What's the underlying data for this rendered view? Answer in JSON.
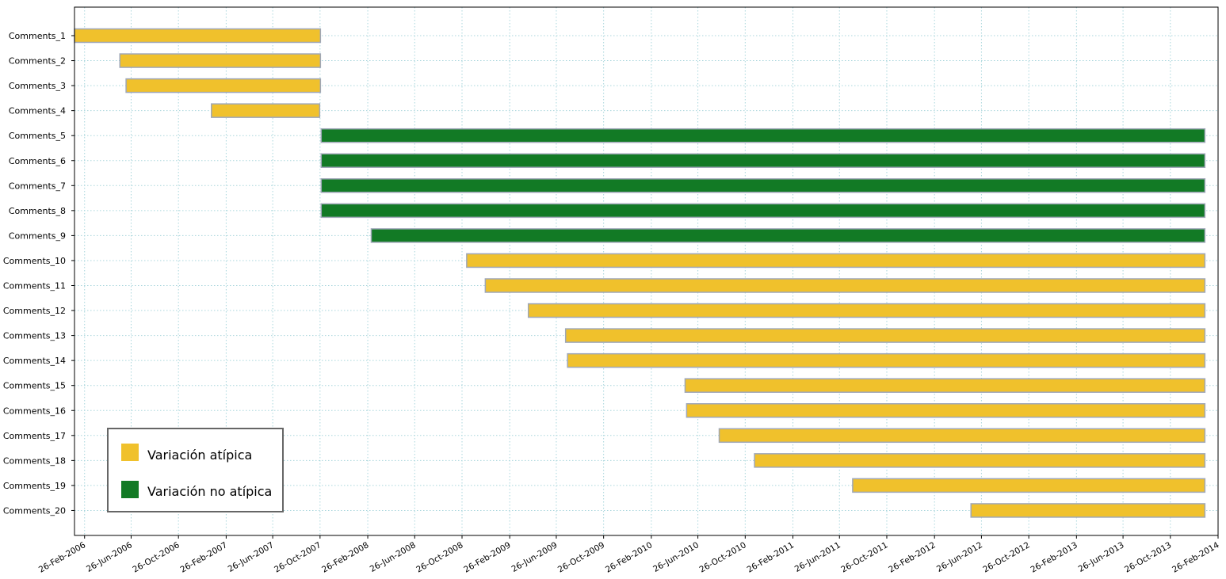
{
  "chart_data": {
    "type": "gantt",
    "title": "",
    "xlabel": "",
    "ylabel": "",
    "grid": true,
    "legend_position": "bottom-left",
    "xlim": [
      "2006-01-31",
      "2014-02-26"
    ],
    "x_ticks": [
      "26-Feb-2006",
      "26-Jun-2006",
      "26-Oct-2006",
      "26-Feb-2007",
      "26-Jun-2007",
      "26-Oct-2007",
      "26-Feb-2008",
      "26-Jun-2008",
      "26-Oct-2008",
      "26-Feb-2009",
      "26-Jun-2009",
      "26-Oct-2009",
      "26-Feb-2010",
      "26-Jun-2010",
      "26-Oct-2010",
      "26-Feb-2011",
      "26-Jun-2011",
      "26-Oct-2011",
      "26-Feb-2012",
      "26-Jun-2012",
      "26-Oct-2012",
      "26-Feb-2013",
      "26-Jun-2013",
      "26-Oct-2013",
      "26-Feb-2014"
    ],
    "series": [
      {
        "name": "Variación atípica",
        "color": "#f0c12c"
      },
      {
        "name": "Variación no atípica",
        "color": "#127a25"
      }
    ],
    "tasks": [
      {
        "label": "Comments_1",
        "start": "2006-01-31",
        "end": "2007-10-27",
        "series": 0
      },
      {
        "label": "Comments_2",
        "start": "2006-05-28",
        "end": "2007-10-27",
        "series": 0
      },
      {
        "label": "Comments_3",
        "start": "2006-06-13",
        "end": "2007-10-27",
        "series": 0
      },
      {
        "label": "Comments_4",
        "start": "2007-01-19",
        "end": "2007-10-25",
        "series": 0
      },
      {
        "label": "Comments_5",
        "start": "2007-10-29",
        "end": "2014-01-23",
        "series": 1
      },
      {
        "label": "Comments_6",
        "start": "2007-10-29",
        "end": "2014-01-23",
        "series": 1
      },
      {
        "label": "Comments_7",
        "start": "2007-10-29",
        "end": "2014-01-23",
        "series": 1
      },
      {
        "label": "Comments_8",
        "start": "2007-10-29",
        "end": "2014-01-23",
        "series": 1
      },
      {
        "label": "Comments_9",
        "start": "2008-03-06",
        "end": "2014-01-23",
        "series": 1
      },
      {
        "label": "Comments_10",
        "start": "2008-11-07",
        "end": "2014-01-23",
        "series": 0
      },
      {
        "label": "Comments_11",
        "start": "2008-12-25",
        "end": "2014-01-23",
        "series": 0
      },
      {
        "label": "Comments_12",
        "start": "2009-04-15",
        "end": "2014-01-23",
        "series": 0
      },
      {
        "label": "Comments_13",
        "start": "2009-07-20",
        "end": "2014-01-23",
        "series": 0
      },
      {
        "label": "Comments_14",
        "start": "2009-07-25",
        "end": "2014-01-23",
        "series": 0
      },
      {
        "label": "Comments_15",
        "start": "2010-05-24",
        "end": "2014-01-23",
        "series": 0
      },
      {
        "label": "Comments_16",
        "start": "2010-05-28",
        "end": "2014-01-23",
        "series": 0
      },
      {
        "label": "Comments_17",
        "start": "2010-08-20",
        "end": "2014-01-23",
        "series": 0
      },
      {
        "label": "Comments_18",
        "start": "2010-11-19",
        "end": "2014-01-23",
        "series": 0
      },
      {
        "label": "Comments_19",
        "start": "2011-07-30",
        "end": "2014-01-23",
        "series": 0
      },
      {
        "label": "Comments_20",
        "start": "2012-05-30",
        "end": "2014-01-23",
        "series": 0
      }
    ],
    "colors": {
      "bar_edge": "#9fa7b7",
      "grid": "#a9d6dc",
      "axis": "#000000",
      "legend_edge": "#666666"
    }
  }
}
